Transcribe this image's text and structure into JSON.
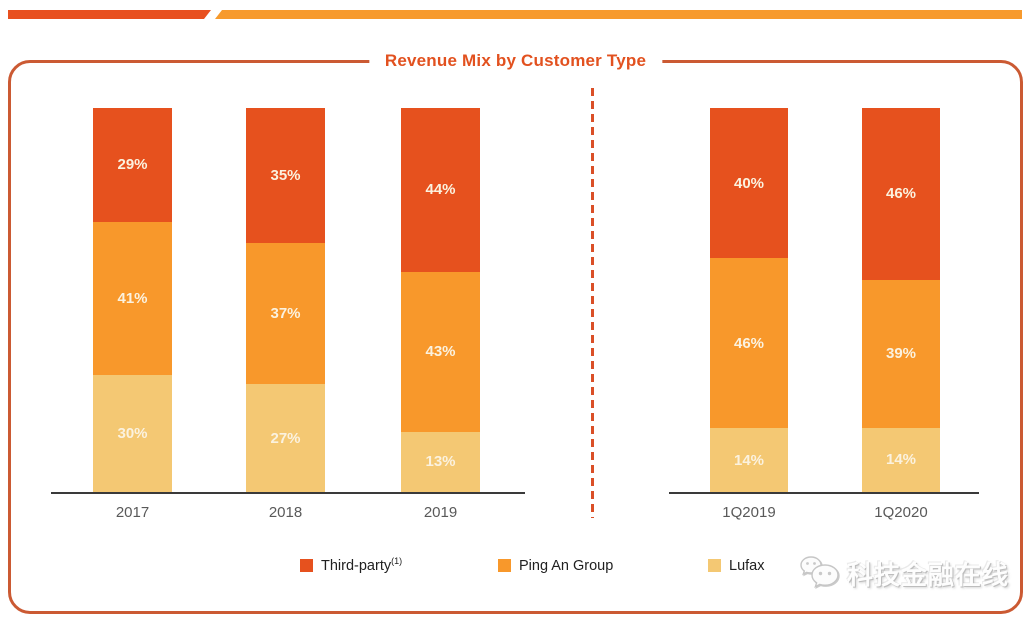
{
  "header_ribbon": {
    "left_color": "#E8501F",
    "right_color": "#F79A2D"
  },
  "panel": {
    "title": "Revenue Mix by Customer Type",
    "title_color": "#E2511F",
    "border_color": "#CB5A33",
    "divider_color": "#DA4F27"
  },
  "chart_data": [
    {
      "type": "bar",
      "stacked": true,
      "title": "Revenue Mix by Customer Type",
      "value_unit": "%",
      "ylim": [
        0,
        100
      ],
      "grid": false,
      "legend_position": "bottom",
      "categories": [
        "2017",
        "2018",
        "2019"
      ],
      "series": [
        {
          "name": "Third-party(1)",
          "color": "#E6511E",
          "values": [
            29,
            35,
            44
          ]
        },
        {
          "name": "Ping An Group",
          "color": "#F8982B",
          "values": [
            41,
            37,
            43
          ]
        },
        {
          "name": "Lufax",
          "color": "#F4C873",
          "values": [
            30,
            27,
            13
          ]
        }
      ]
    },
    {
      "type": "bar",
      "stacked": true,
      "value_unit": "%",
      "ylim": [
        0,
        100
      ],
      "grid": false,
      "categories": [
        "1Q2019",
        "1Q2020"
      ],
      "series": [
        {
          "name": "Third-party(1)",
          "color": "#E6511E",
          "values": [
            40,
            46
          ]
        },
        {
          "name": "Ping An Group",
          "color": "#F8982B",
          "values": [
            46,
            39
          ]
        },
        {
          "name": "Lufax",
          "color": "#F4C873",
          "values": [
            14,
            14
          ]
        }
      ]
    }
  ],
  "legend": {
    "items": [
      {
        "label": "Third-party",
        "superscript": "(1)",
        "color": "#E6511E"
      },
      {
        "label": "Ping An Group",
        "superscript": "",
        "color": "#F8982B"
      },
      {
        "label": "Lufax",
        "superscript": "",
        "color": "#F4C873"
      }
    ]
  },
  "watermark": {
    "text": "科技金融在线"
  }
}
